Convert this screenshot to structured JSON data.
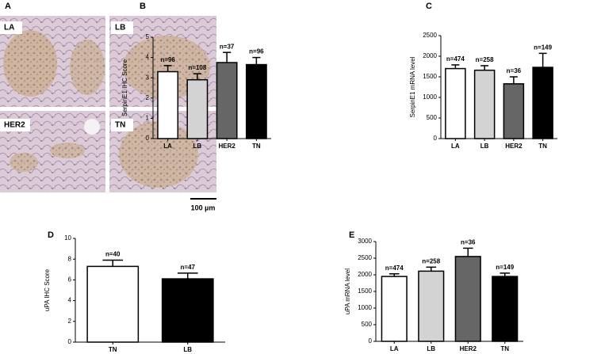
{
  "image_panel": {
    "panel_label": "A",
    "labels": [
      "LA",
      "LB",
      "HER2",
      "TN"
    ],
    "scale_bar": "100 µm"
  },
  "chart_data": [
    {
      "type": "bar",
      "panel_label": "B",
      "ylabel": "SerpinE1 IHC Score",
      "categories": [
        "LA",
        "LB",
        "HER2",
        "TN"
      ],
      "values": [
        3.3,
        2.9,
        3.75,
        3.65
      ],
      "errors": [
        0.3,
        0.3,
        0.5,
        0.35
      ],
      "annotations": [
        "n=96",
        "n=108",
        "n=37",
        "n=96"
      ],
      "colors": [
        "#ffffff",
        "#d3d3d3",
        "#666666",
        "#000000"
      ],
      "ylim": [
        0,
        5
      ],
      "yticks": [
        0,
        1,
        2,
        3,
        4,
        5
      ]
    },
    {
      "type": "bar",
      "panel_label": "C",
      "ylabel": "SerpinE1 mRNA level",
      "categories": [
        "LA",
        "LB",
        "HER2",
        "TN"
      ],
      "values": [
        1700,
        1660,
        1330,
        1730
      ],
      "errors": [
        90,
        110,
        170,
        340
      ],
      "annotations": [
        "n=474",
        "n=258",
        "n=36",
        "n=149"
      ],
      "colors": [
        "#ffffff",
        "#d3d3d3",
        "#666666",
        "#000000"
      ],
      "ylim": [
        0,
        2500
      ],
      "yticks": [
        0,
        500,
        1000,
        1500,
        2000,
        2500
      ]
    },
    {
      "type": "bar",
      "panel_label": "D",
      "ylabel": "uPA IHC Score",
      "categories": [
        "TN",
        "LB"
      ],
      "values": [
        7.3,
        6.1
      ],
      "errors": [
        0.6,
        0.55
      ],
      "annotations": [
        "n=40",
        "n=47"
      ],
      "colors": [
        "#ffffff",
        "#000000"
      ],
      "ylim": [
        0,
        10
      ],
      "yticks": [
        0,
        2,
        4,
        6,
        8,
        10
      ]
    },
    {
      "type": "bar",
      "panel_label": "E",
      "ylabel": "uPA mRNA level",
      "categories": [
        "LA",
        "LB",
        "HER2",
        "TN"
      ],
      "values": [
        1950,
        2110,
        2550,
        1950
      ],
      "errors": [
        80,
        120,
        250,
        100
      ],
      "annotations": [
        "n=474",
        "n=258",
        "n=36",
        "n=149"
      ],
      "colors": [
        "#ffffff",
        "#d3d3d3",
        "#666666",
        "#000000"
      ],
      "ylim": [
        0,
        3000
      ],
      "yticks": [
        0,
        500,
        1000,
        1500,
        2000,
        2500,
        3000
      ]
    }
  ]
}
